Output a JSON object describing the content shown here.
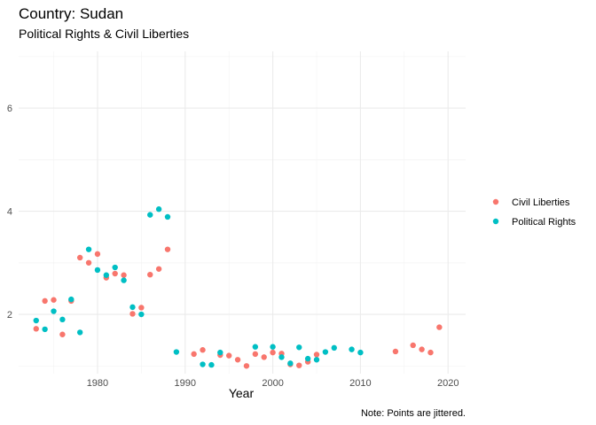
{
  "chart_data": {
    "type": "scatter",
    "title": "Country: Sudan",
    "subtitle": "Political Rights & Civil Liberties",
    "xlabel": "Year",
    "ylabel": "",
    "caption": "Note: Points are jittered.",
    "xlim": [
      1971,
      2022
    ],
    "ylim": [
      0.85,
      7.1
    ],
    "x_ticks": [
      1980,
      1990,
      2000,
      2010,
      2020
    ],
    "y_ticks": [
      2,
      4,
      6
    ],
    "grid": true,
    "legend_position": "right",
    "series": [
      {
        "name": "Civil Liberties",
        "color": "#F8766D",
        "points": [
          [
            1973,
            1.72
          ],
          [
            1974,
            2.26
          ],
          [
            1975,
            2.28
          ],
          [
            1976,
            1.61
          ],
          [
            1977,
            2.26
          ],
          [
            1978,
            3.1
          ],
          [
            1979,
            3.0
          ],
          [
            1980,
            3.17
          ],
          [
            1981,
            2.71
          ],
          [
            1982,
            2.79
          ],
          [
            1983,
            2.76
          ],
          [
            1984,
            2.01
          ],
          [
            1985,
            2.13
          ],
          [
            1986,
            2.77
          ],
          [
            1987,
            2.88
          ],
          [
            1988,
            3.26
          ],
          [
            1991,
            1.23
          ],
          [
            1992,
            1.31
          ],
          [
            1994,
            1.21
          ],
          [
            1995,
            1.2
          ],
          [
            1996,
            1.12
          ],
          [
            1997,
            1.0
          ],
          [
            1998,
            1.23
          ],
          [
            1999,
            1.17
          ],
          [
            2000,
            1.26
          ],
          [
            2001,
            1.24
          ],
          [
            2002,
            1.03
          ],
          [
            2003,
            1.01
          ],
          [
            2004,
            1.08
          ],
          [
            2005,
            1.22
          ],
          [
            2014,
            1.28
          ],
          [
            2016,
            1.4
          ],
          [
            2017,
            1.32
          ],
          [
            2018,
            1.26
          ],
          [
            2019,
            1.75
          ]
        ]
      },
      {
        "name": "Political Rights",
        "color": "#00BFC4",
        "points": [
          [
            1973,
            1.88
          ],
          [
            1974,
            1.71
          ],
          [
            1975,
            2.06
          ],
          [
            1976,
            1.9
          ],
          [
            1977,
            2.29
          ],
          [
            1978,
            1.65
          ],
          [
            1979,
            3.26
          ],
          [
            1980,
            2.86
          ],
          [
            1981,
            2.76
          ],
          [
            1982,
            2.91
          ],
          [
            1983,
            2.66
          ],
          [
            1984,
            2.14
          ],
          [
            1985,
            2.0
          ],
          [
            1986,
            3.93
          ],
          [
            1987,
            4.04
          ],
          [
            1988,
            3.89
          ],
          [
            1989,
            1.27
          ],
          [
            1992,
            1.03
          ],
          [
            1993,
            1.02
          ],
          [
            1994,
            1.26
          ],
          [
            1998,
            1.37
          ],
          [
            2000,
            1.37
          ],
          [
            2001,
            1.17
          ],
          [
            2002,
            1.05
          ],
          [
            2003,
            1.36
          ],
          [
            2004,
            1.14
          ],
          [
            2005,
            1.12
          ],
          [
            2006,
            1.27
          ],
          [
            2007,
            1.35
          ],
          [
            2009,
            1.32
          ],
          [
            2010,
            1.26
          ]
        ]
      }
    ]
  }
}
